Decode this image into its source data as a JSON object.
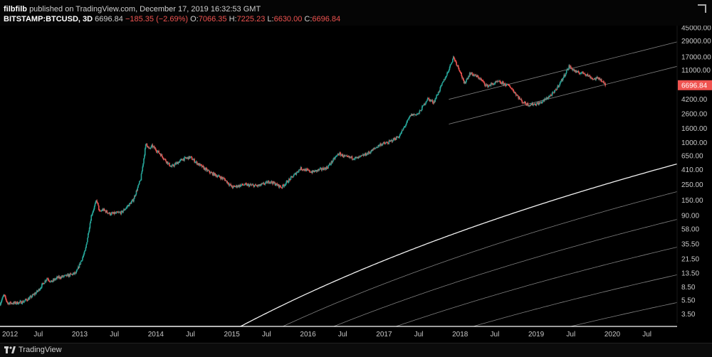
{
  "header": {
    "author": "filbfilb",
    "published_text": "published on TradingView.com, December 17, 2019 16:32:53 GMT",
    "symbol": "BITSTAMP:BTCUSD, 3D",
    "last_price": "6696.84",
    "change": "−185.35 (−2.69%)",
    "o_label": "O:",
    "o_value": "7066.35",
    "h_label": "H:",
    "h_value": "7225.23",
    "l_label": "L:",
    "l_value": "6630.00",
    "c_label": "C:",
    "c_value": "6696.84"
  },
  "footer": {
    "brand": "TradingView"
  },
  "colors": {
    "up": "#26a69a",
    "down": "#ef5350",
    "bands": "#ffffff",
    "price_tag": "#ef5350"
  },
  "chart_data": {
    "type": "line",
    "title": "",
    "scale": "log",
    "ylim": [
      2.6,
      48000
    ],
    "xlim": [
      2012.0,
      2020.9
    ],
    "y_ticks": [
      "45000.00",
      "29000.00",
      "17000.00",
      "11000.00",
      "6696.84",
      "4200.00",
      "2600.00",
      "1600.00",
      "1000.00",
      "650.00",
      "410.00",
      "250.00",
      "150.00",
      "90.00",
      "58.00",
      "35.50",
      "21.50",
      "13.50",
      "8.50",
      "5.50",
      "3.50"
    ],
    "x_ticks": [
      {
        "label": "2012",
        "x": 2012.0
      },
      {
        "label": "Jul",
        "x": 2012.5
      },
      {
        "label": "2013",
        "x": 2013.0
      },
      {
        "label": "Jul",
        "x": 2013.5
      },
      {
        "label": "2014",
        "x": 2014.0
      },
      {
        "label": "Jul",
        "x": 2014.5
      },
      {
        "label": "2015",
        "x": 2015.0
      },
      {
        "label": "Jul",
        "x": 2015.5
      },
      {
        "label": "2016",
        "x": 2016.0
      },
      {
        "label": "Jul",
        "x": 2016.5
      },
      {
        "label": "2017",
        "x": 2017.0
      },
      {
        "label": "Jul",
        "x": 2017.5
      },
      {
        "label": "2018",
        "x": 2018.0
      },
      {
        "label": "Jul",
        "x": 2018.5
      },
      {
        "label": "2019",
        "x": 2019.0
      },
      {
        "label": "Jul",
        "x": 2019.5
      },
      {
        "label": "2020",
        "x": 2020.0
      },
      {
        "label": "Jul",
        "x": 2020.5
      }
    ],
    "price_tag": "6696.84",
    "price_path": [
      [
        2012.0,
        4.9
      ],
      [
        2012.05,
        6.5
      ],
      [
        2012.1,
        5.0
      ],
      [
        2012.2,
        5.0
      ],
      [
        2012.3,
        5.2
      ],
      [
        2012.4,
        6.0
      ],
      [
        2012.5,
        7.5
      ],
      [
        2012.62,
        11.5
      ],
      [
        2012.67,
        10.0
      ],
      [
        2012.75,
        11.5
      ],
      [
        2012.9,
        12.5
      ],
      [
        2013.0,
        13.5
      ],
      [
        2013.12,
        28
      ],
      [
        2013.2,
        90
      ],
      [
        2013.27,
        150
      ],
      [
        2013.31,
        100
      ],
      [
        2013.35,
        110
      ],
      [
        2013.45,
        95
      ],
      [
        2013.6,
        100
      ],
      [
        2013.75,
        150
      ],
      [
        2013.85,
        300
      ],
      [
        2013.92,
        1000
      ],
      [
        2013.96,
        800
      ],
      [
        2014.0,
        900
      ],
      [
        2014.1,
        700
      ],
      [
        2014.25,
        450
      ],
      [
        2014.4,
        580
      ],
      [
        2014.5,
        620
      ],
      [
        2014.6,
        500
      ],
      [
        2014.75,
        380
      ],
      [
        2014.95,
        300
      ],
      [
        2015.05,
        230
      ],
      [
        2015.2,
        250
      ],
      [
        2015.4,
        240
      ],
      [
        2015.55,
        280
      ],
      [
        2015.7,
        230
      ],
      [
        2015.85,
        330
      ],
      [
        2015.95,
        430
      ],
      [
        2016.1,
        380
      ],
      [
        2016.3,
        440
      ],
      [
        2016.45,
        700
      ],
      [
        2016.55,
        620
      ],
      [
        2016.7,
        600
      ],
      [
        2016.85,
        720
      ],
      [
        2017.0,
        950
      ],
      [
        2017.1,
        1000
      ],
      [
        2017.25,
        1250
      ],
      [
        2017.4,
        2500
      ],
      [
        2017.5,
        2600
      ],
      [
        2017.62,
        4300
      ],
      [
        2017.7,
        3800
      ],
      [
        2017.8,
        6500
      ],
      [
        2017.88,
        10000
      ],
      [
        2017.96,
        17000
      ],
      [
        2018.05,
        10500
      ],
      [
        2018.1,
        7000
      ],
      [
        2018.18,
        10000
      ],
      [
        2018.3,
        8500
      ],
      [
        2018.4,
        6500
      ],
      [
        2018.55,
        7500
      ],
      [
        2018.7,
        6500
      ],
      [
        2018.86,
        3900
      ],
      [
        2018.95,
        3500
      ],
      [
        2019.1,
        3700
      ],
      [
        2019.28,
        5200
      ],
      [
        2019.4,
        8500
      ],
      [
        2019.48,
        12500
      ],
      [
        2019.58,
        10200
      ],
      [
        2019.68,
        10000
      ],
      [
        2019.8,
        8200
      ],
      [
        2019.88,
        8500
      ],
      [
        2019.93,
        7200
      ],
      [
        2019.96,
        6697
      ]
    ],
    "bands": [
      {
        "type": "log-curve",
        "a": -14.0,
        "b": 5.2
      },
      {
        "type": "log-curve",
        "a": -14.0,
        "b": 5.57
      },
      {
        "type": "log-curve",
        "a": -14.0,
        "b": 5.94
      },
      {
        "type": "log-curve",
        "a": -14.0,
        "b": 6.31
      },
      {
        "type": "log-curve",
        "a": -14.0,
        "b": 6.68
      },
      {
        "type": "log-curve",
        "a": -14.0,
        "b": 7.05
      },
      {
        "type": "log-curve",
        "a": -14.0,
        "b": 7.42
      },
      {
        "type": "log-curve",
        "a": -14.0,
        "b": 7.79
      },
      {
        "type": "log-curve",
        "a": -14.0,
        "b": 8.16
      },
      {
        "type": "straight",
        "from": [
          2017.9,
          4200
        ],
        "to": [
          2020.9,
          28000
        ]
      },
      {
        "type": "straight",
        "from": [
          2017.9,
          1850
        ],
        "to": [
          2020.9,
          12500
        ]
      }
    ]
  }
}
